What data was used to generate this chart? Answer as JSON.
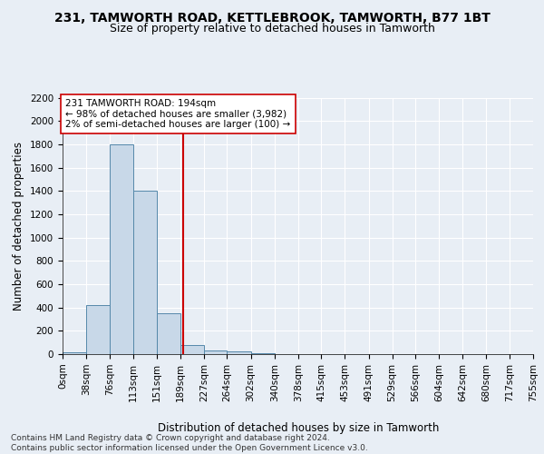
{
  "title1": "231, TAMWORTH ROAD, KETTLEBROOK, TAMWORTH, B77 1BT",
  "title2": "Size of property relative to detached houses in Tamworth",
  "xlabel": "Distribution of detached houses by size in Tamworth",
  "ylabel": "Number of detached properties",
  "footnote": "Contains HM Land Registry data © Crown copyright and database right 2024.\nContains public sector information licensed under the Open Government Licence v3.0.",
  "bin_edges": [
    0,
    38,
    76,
    113,
    151,
    189,
    227,
    264,
    302,
    340,
    378,
    415,
    453,
    491,
    529,
    566,
    604,
    642,
    680,
    717,
    755
  ],
  "bar_heights": [
    15,
    420,
    1800,
    1400,
    350,
    80,
    30,
    20,
    10,
    0,
    0,
    0,
    0,
    0,
    0,
    0,
    0,
    0,
    0,
    0
  ],
  "bar_color": "#c8d8e8",
  "bar_edgecolor": "#5588aa",
  "vline_x": 194,
  "vline_color": "#cc0000",
  "annotation_text": "231 TAMWORTH ROAD: 194sqm\n← 98% of detached houses are smaller (3,982)\n2% of semi-detached houses are larger (100) →",
  "annotation_box_edgecolor": "#cc0000",
  "annotation_box_facecolor": "#ffffff",
  "ylim": [
    0,
    2200
  ],
  "title1_fontsize": 10,
  "title2_fontsize": 9,
  "xlabel_fontsize": 8.5,
  "ylabel_fontsize": 8.5,
  "tick_fontsize": 7.5,
  "annotation_fontsize": 7.5,
  "footnote_fontsize": 6.5,
  "background_color": "#e8eef5",
  "axes_background_color": "#e8eef5"
}
